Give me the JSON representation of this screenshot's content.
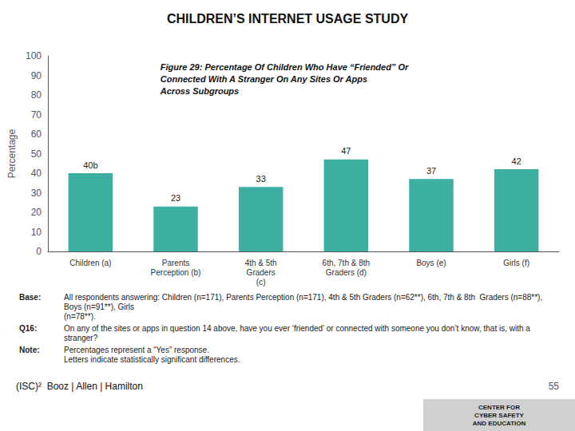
{
  "chart_data": {
    "type": "bar",
    "title": "CHILDREN’S INTERNET USAGE STUDY",
    "subtitle": [
      "Figure 29: Percentage Of Children Who Have “Friended” Or",
      "Connected With A Stranger On Any Sites Or Apps",
      "Across Subgroups"
    ],
    "categories": [
      "Children (a)",
      "Parents\nPerception (b)",
      "4th & 5th\nGraders\n(c)",
      "6th, 7th & 8th\nGraders (d)",
      "Boys (e)",
      "Girls (f)"
    ],
    "values": [
      40,
      23,
      33,
      47,
      37,
      42
    ],
    "value_labels": [
      "40b",
      "23",
      "33",
      "47",
      "37",
      "42"
    ],
    "data_labels": true,
    "color": "#3CAFA0",
    "ylabel": "Percentage",
    "ylim": [
      0,
      100
    ],
    "yticks": [
      0,
      10,
      20,
      30,
      40,
      50,
      60,
      70,
      80,
      90,
      100
    ],
    "grid": false,
    "annotations": {
      "notes": [
        {
          "label": "Base:",
          "text": [
            "All respondents answering: Children (n=171), Parents Perception (n=171), 4th & 5th Graders (n=62**), 6th, 7th & 8th  Graders (n=88**), Boys (n=91**), Girls",
            "(n=78**)."
          ]
        },
        {
          "label": "Q16:",
          "text": [
            "On any of the sites or apps in question 14 above, have you ever ‘friended’ or connected with someone you don’t know, that is, with a stranger?"
          ]
        },
        {
          "label": "Note:",
          "text": [
            "Percentages represent a “Yes” response.",
            "Letters indicate statistically significant differences."
          ]
        }
      ],
      "page_number": "55",
      "logo": "(ISC)²  Booz | Allen | Hamilton",
      "badge": "CENTER FOR\nCYBER SAFETY\nAND EDUCATION"
    }
  }
}
